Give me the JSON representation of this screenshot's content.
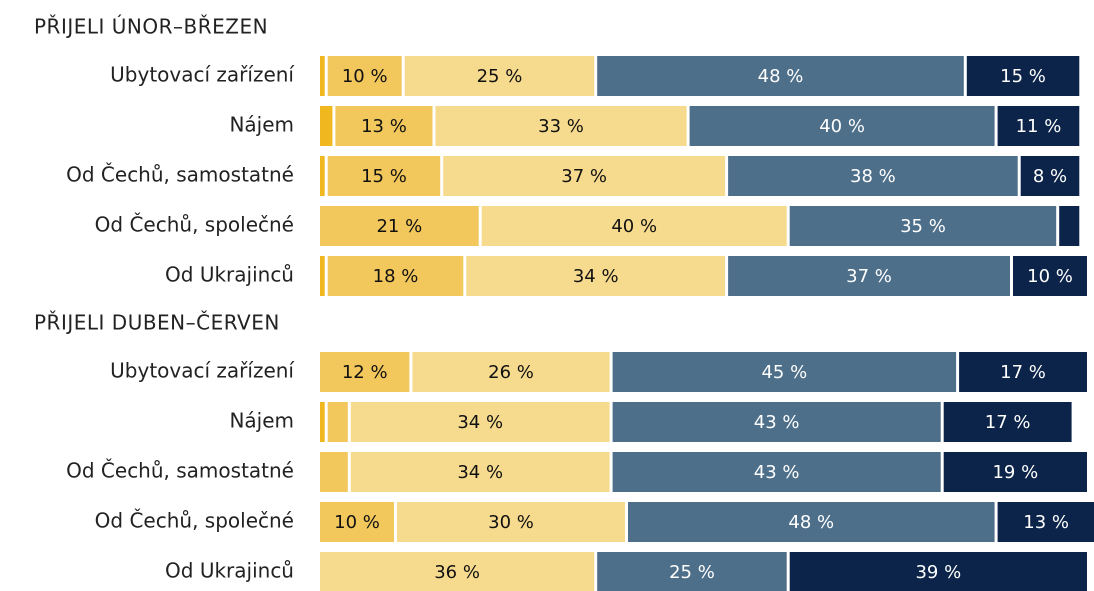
{
  "chart_data": [
    {
      "type": "bar",
      "orientation": "horizontal",
      "stacked": true,
      "title": "PŘIJELI ÚNOR–BŘEZEN",
      "categories": [
        "Ubytovací zařízení",
        "Nájem",
        "Od Čechů, samostatné",
        "Od Čechů, společné",
        "Od Ukrajinců"
      ],
      "series": [
        {
          "color": "#f0b71e",
          "text_color": "#111111",
          "values": [
            1,
            2,
            1,
            null,
            1
          ],
          "value_labels": [
            null,
            null,
            null,
            null,
            null
          ]
        },
        {
          "color": "#f2c75c",
          "text_color": "#111111",
          "values": [
            10,
            13,
            15,
            21,
            18
          ],
          "value_labels": [
            "10 %",
            "13 %",
            "15 %",
            "21 %",
            "18 %"
          ]
        },
        {
          "color": "#f6da8e",
          "text_color": "#111111",
          "values": [
            25,
            33,
            37,
            40,
            34
          ],
          "value_labels": [
            "25 %",
            "33 %",
            "37 %",
            "40 %",
            "34 %"
          ]
        },
        {
          "color": "#4e6f8a",
          "text_color": "#ffffff",
          "values": [
            48,
            40,
            38,
            35,
            37
          ],
          "value_labels": [
            "48 %",
            "40 %",
            "38 %",
            "35 %",
            "37 %"
          ]
        },
        {
          "color": "#0c2449",
          "text_color": "#ffffff",
          "values": [
            15,
            11,
            8,
            3,
            10
          ],
          "value_labels": [
            "15 %",
            "11 %",
            "8 %",
            null,
            "10 %"
          ]
        }
      ]
    },
    {
      "type": "bar",
      "orientation": "horizontal",
      "stacked": true,
      "title": "PŘIJELI DUBEN–ČERVEN",
      "categories": [
        "Ubytovací zařízení",
        "Nájem",
        "Od Čechů, samostatné",
        "Od Čechů, společné",
        "Od Ukrajinců"
      ],
      "series": [
        {
          "color": "#f0b71e",
          "text_color": "#111111",
          "values": [
            null,
            1,
            null,
            null,
            null
          ],
          "value_labels": [
            null,
            null,
            null,
            null,
            null
          ]
        },
        {
          "color": "#f2c75c",
          "text_color": "#111111",
          "values": [
            12,
            3,
            4,
            10,
            null
          ],
          "value_labels": [
            "12 %",
            null,
            null,
            "10 %",
            null
          ]
        },
        {
          "color": "#f6da8e",
          "text_color": "#111111",
          "values": [
            26,
            34,
            34,
            30,
            36
          ],
          "value_labels": [
            "26 %",
            "34 %",
            "34 %",
            "30 %",
            "36 %"
          ]
        },
        {
          "color": "#4e6f8a",
          "text_color": "#ffffff",
          "values": [
            45,
            43,
            43,
            48,
            25
          ],
          "value_labels": [
            "45 %",
            "43 %",
            "43 %",
            "48 %",
            "25 %"
          ]
        },
        {
          "color": "#0c2449",
          "text_color": "#ffffff",
          "values": [
            17,
            17,
            19,
            13,
            39
          ],
          "value_labels": [
            "17 %",
            "17 %",
            "19 %",
            "13 %",
            "39 %"
          ]
        }
      ]
    }
  ]
}
